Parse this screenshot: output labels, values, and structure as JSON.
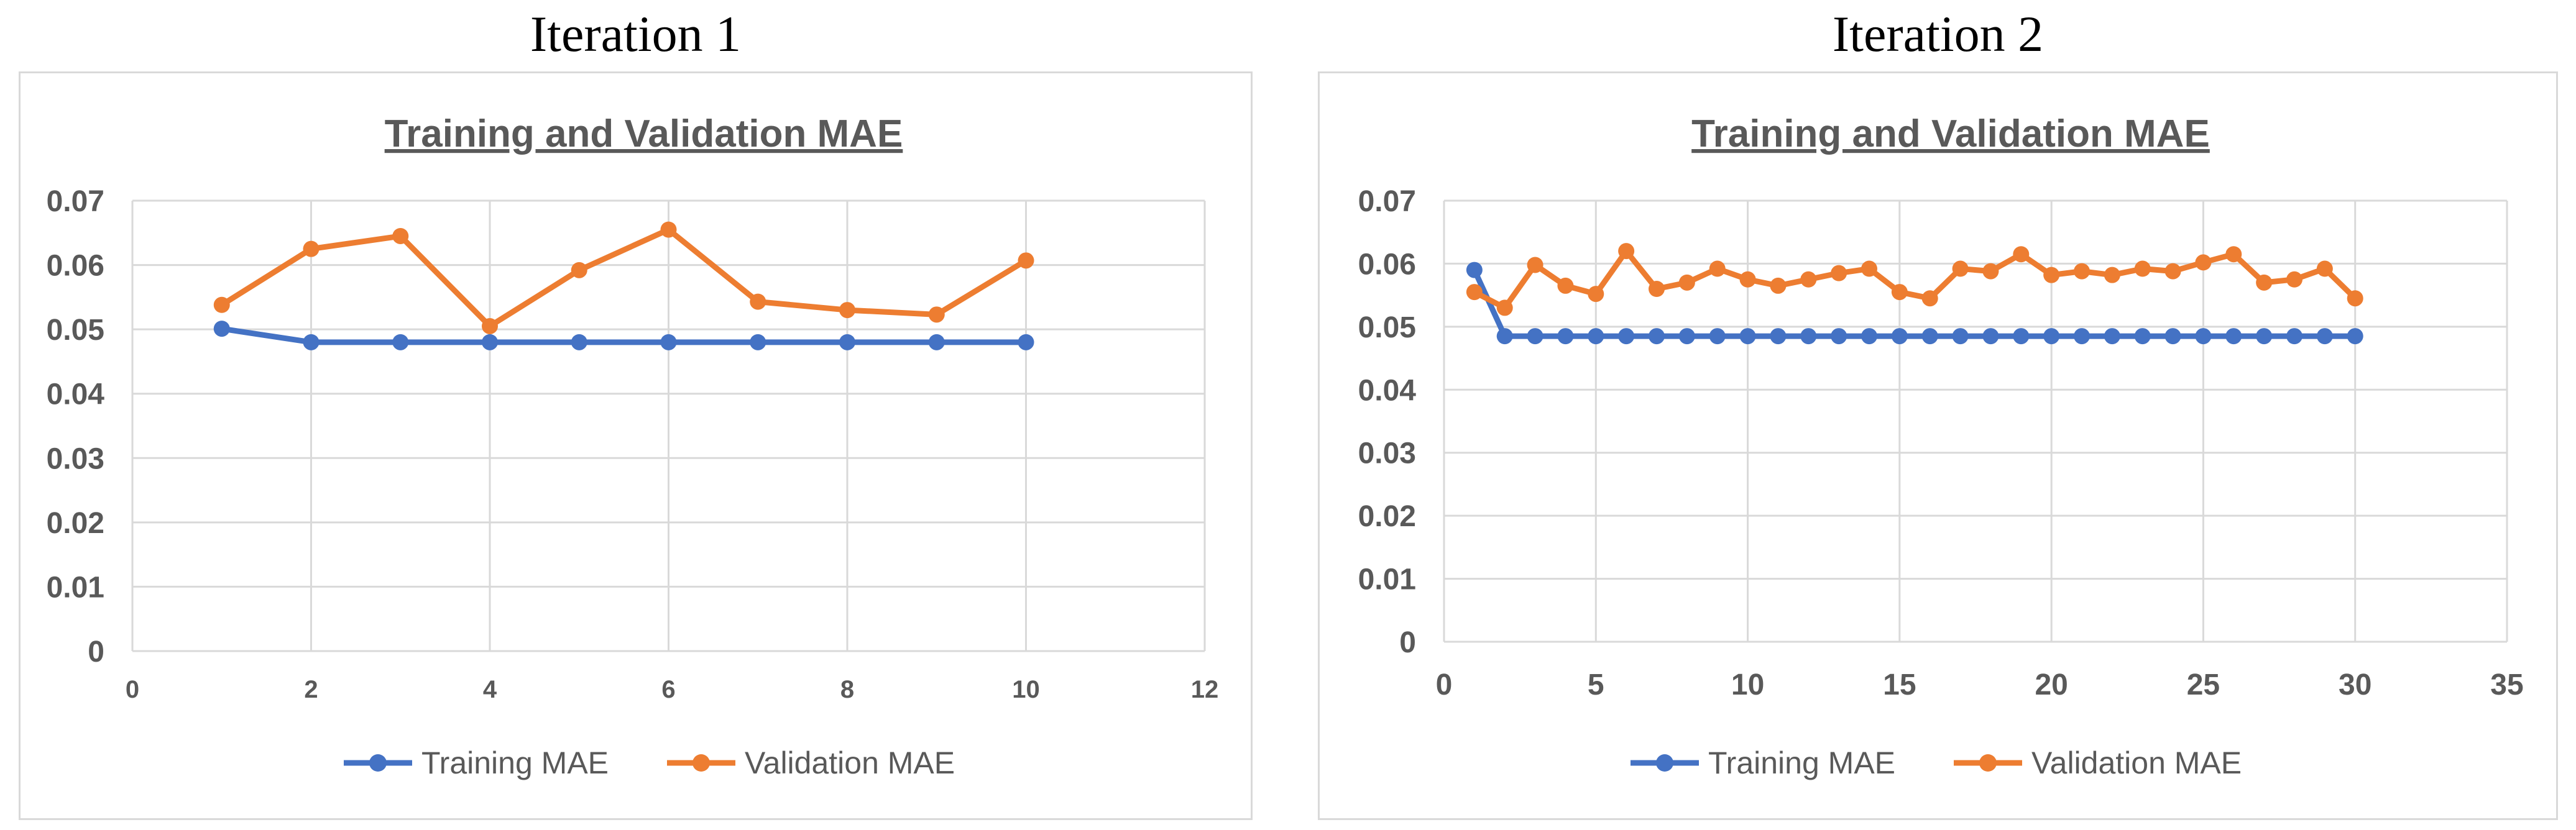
{
  "figure_titles": [
    "Iteration 1",
    "Iteration 2"
  ],
  "colors": {
    "training": "#4472c4",
    "validation": "#ed7d31",
    "grid": "#d9d9d9",
    "text": "#595959"
  },
  "chart_data": [
    {
      "type": "line",
      "title": "Training and Validation MAE",
      "xlabel": "",
      "ylabel": "",
      "xlim": [
        0,
        12
      ],
      "ylim": [
        0,
        0.07
      ],
      "x_ticks": [
        0,
        2,
        4,
        6,
        8,
        10,
        12
      ],
      "y_ticks": [
        0,
        0.01,
        0.02,
        0.03,
        0.04,
        0.05,
        0.06,
        0.07
      ],
      "y_tick_labels": [
        "0",
        "0.01",
        "0.02",
        "0.03",
        "0.04",
        "0.05",
        "0.06",
        "0.07"
      ],
      "legend": "bottom",
      "grid": true,
      "series": [
        {
          "name": "Training MAE",
          "x": [
            1,
            2,
            3,
            4,
            5,
            6,
            7,
            8,
            9,
            10
          ],
          "values": [
            0.0501,
            0.048,
            0.048,
            0.048,
            0.048,
            0.048,
            0.048,
            0.048,
            0.048,
            0.048
          ]
        },
        {
          "name": "Validation MAE",
          "x": [
            1,
            2,
            3,
            4,
            5,
            6,
            7,
            8,
            9,
            10
          ],
          "values": [
            0.0538,
            0.0625,
            0.0645,
            0.0505,
            0.0592,
            0.0655,
            0.0543,
            0.053,
            0.0523,
            0.0607
          ]
        }
      ]
    },
    {
      "type": "line",
      "title": "Training and Validation MAE",
      "xlabel": "",
      "ylabel": "",
      "xlim": [
        0,
        35
      ],
      "ylim": [
        0,
        0.07
      ],
      "x_ticks": [
        0,
        5,
        10,
        15,
        20,
        25,
        30,
        35
      ],
      "y_ticks": [
        0,
        0.01,
        0.02,
        0.03,
        0.04,
        0.05,
        0.06,
        0.07
      ],
      "y_tick_labels": [
        "0",
        "0.01",
        "0.02",
        "0.03",
        "0.04",
        "0.05",
        "0.06",
        "0.07"
      ],
      "legend": "bottom",
      "grid": true,
      "series": [
        {
          "name": "Training MAE",
          "x": [
            1,
            2,
            3,
            4,
            5,
            6,
            7,
            8,
            9,
            10,
            11,
            12,
            13,
            14,
            15,
            16,
            17,
            18,
            19,
            20,
            21,
            22,
            23,
            24,
            25,
            26,
            27,
            28,
            29,
            30
          ],
          "values": [
            0.059,
            0.0485,
            0.0485,
            0.0485,
            0.0485,
            0.0485,
            0.0485,
            0.0485,
            0.0485,
            0.0485,
            0.0485,
            0.0485,
            0.0485,
            0.0485,
            0.0485,
            0.0485,
            0.0485,
            0.0485,
            0.0485,
            0.0485,
            0.0485,
            0.0485,
            0.0485,
            0.0485,
            0.0485,
            0.0485,
            0.0485,
            0.0485,
            0.0485,
            0.0485
          ]
        },
        {
          "name": "Validation MAE",
          "x": [
            1,
            2,
            3,
            4,
            5,
            6,
            7,
            8,
            9,
            10,
            11,
            12,
            13,
            14,
            15,
            16,
            17,
            18,
            19,
            20,
            21,
            22,
            23,
            24,
            25,
            26,
            27,
            28,
            29,
            30
          ],
          "values": [
            0.0555,
            0.053,
            0.0598,
            0.0565,
            0.0552,
            0.062,
            0.056,
            0.057,
            0.0592,
            0.0575,
            0.0565,
            0.0575,
            0.0585,
            0.0592,
            0.0555,
            0.0545,
            0.0592,
            0.0588,
            0.0615,
            0.0582,
            0.0588,
            0.0582,
            0.0592,
            0.0588,
            0.0602,
            0.0615,
            0.057,
            0.0575,
            0.0592,
            0.0545
          ]
        }
      ]
    }
  ]
}
